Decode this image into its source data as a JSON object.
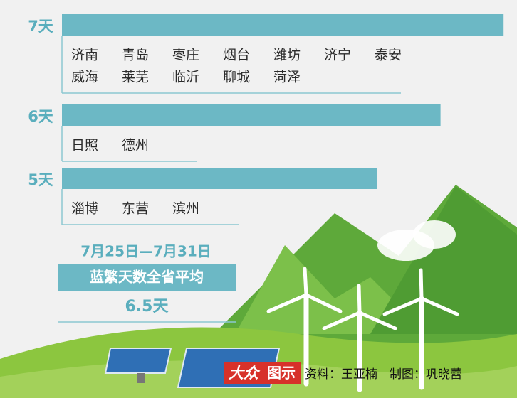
{
  "chart_data": {
    "type": "bar",
    "orientation": "horizontal",
    "color": "#6cb8c5",
    "values": [
      7,
      6,
      5
    ],
    "value_labels": [
      "7天",
      "6天",
      "5天"
    ],
    "groups": [
      [
        [
          "济南",
          "青岛",
          "枣庄",
          "烟台",
          "潍坊",
          "济宁",
          "泰安"
        ],
        [
          "威海",
          "莱芜",
          "临沂",
          "聊城",
          "菏泽"
        ]
      ],
      [
        [
          "日照",
          "德州"
        ]
      ],
      [
        [
          "淄博",
          "东营",
          "滨州"
        ]
      ]
    ]
  },
  "average": {
    "period": "7月25日—7月31日",
    "label": "蓝繁天数全省平均",
    "value_label": "6.5天"
  },
  "logo": {
    "brand": "大众",
    "tag": "图示"
  },
  "source": "资料：王亚楠　制图：巩晓蕾"
}
